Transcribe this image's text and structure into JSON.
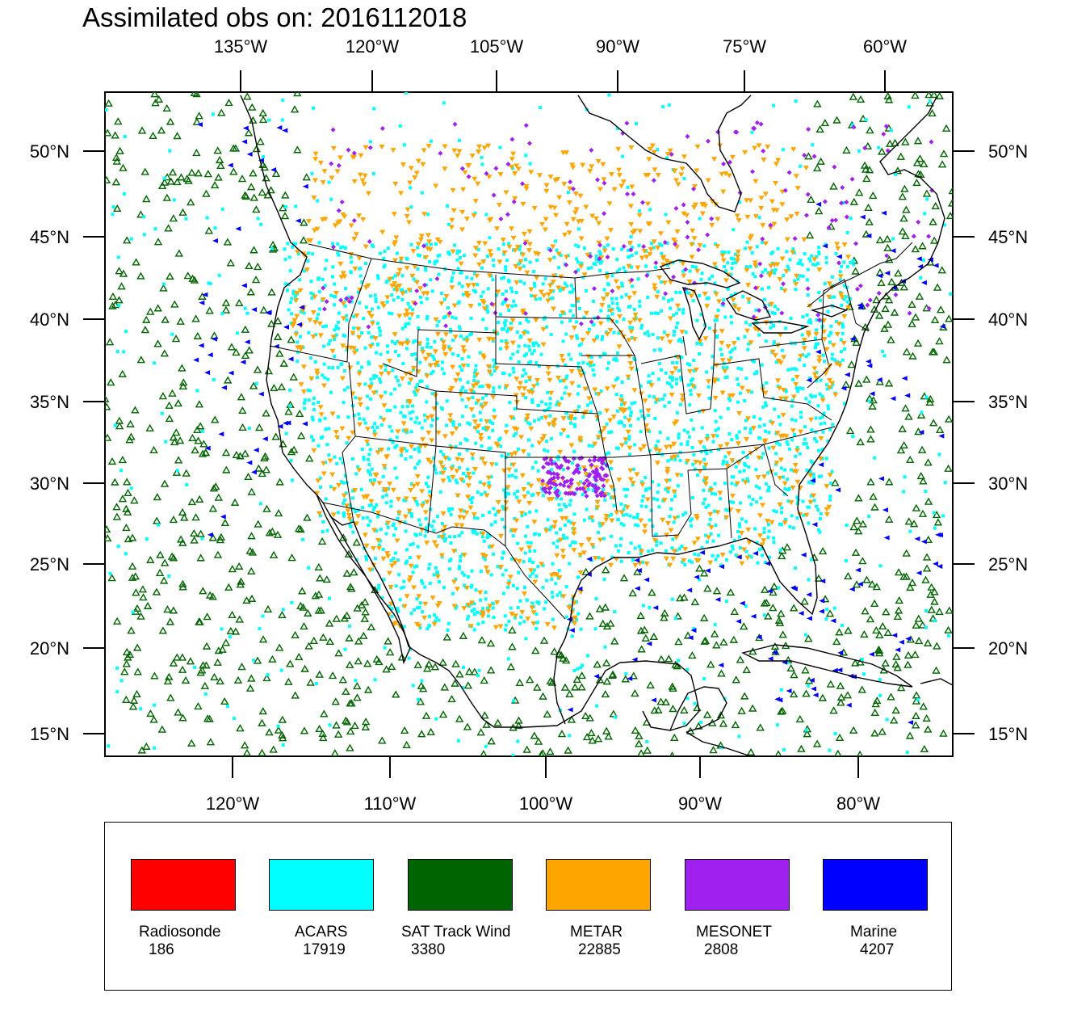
{
  "title": "Assimilated obs on: 2016112018",
  "map": {
    "top_lon_labels": [
      "135°W",
      "120°W",
      "105°W",
      "90°W",
      "75°W",
      "60°W"
    ],
    "bottom_lon_labels": [
      "120°W",
      "110°W",
      "100°W",
      "90°W",
      "80°W"
    ],
    "lat_labels": [
      "50°N",
      "45°N",
      "40°N",
      "35°N",
      "30°N",
      "25°N",
      "20°N",
      "15°N"
    ],
    "region": "Contiguous United States, southern Canada, Mexico, Gulf of Mexico and adjacent Atlantic and Pacific oceans",
    "observation_density": {
      "ACARS": "dense across continental US, tracks over oceans",
      "SAT Track Wind": "over Pacific, Atlantic and Gulf of Mexico",
      "METAR": "over land, densest in eastern US and Oklahoma",
      "MESONET": "southern Canada border, Great Lakes and Oklahoma",
      "Marine": "along coastlines and offshore"
    }
  },
  "legend": [
    {
      "name": "Radiosonde",
      "count": "186",
      "color": "#ff0000"
    },
    {
      "name": "ACARS",
      "count": "17919",
      "color": "#00ffff"
    },
    {
      "name": "SAT Track Wind",
      "count": "3380",
      "color": "#006400"
    },
    {
      "name": "METAR",
      "count": "22885",
      "color": "#ffa500"
    },
    {
      "name": "MESONET",
      "count": "2808",
      "color": "#a020f0"
    },
    {
      "name": "Marine",
      "count": "4207",
      "color": "#0000ff"
    }
  ]
}
